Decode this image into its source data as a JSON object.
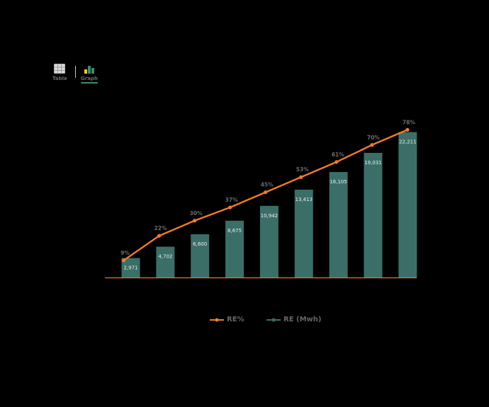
{
  "view_toggle": {
    "table_label": "Table",
    "graph_label": "Graph",
    "table_icon": "table-grid-icon",
    "graph_icon": "bar-graph-icon",
    "active": "graph"
  },
  "colors": {
    "bar": "#3b6e67",
    "line": "#f07a30",
    "axis": "#e07a2e",
    "label": "#6b6b6b",
    "active_tab": "#3e8b6e"
  },
  "chart_data": {
    "type": "bar",
    "categories": [
      "",
      "",
      "",
      "",
      "",
      "",
      "",
      "",
      ""
    ],
    "series": [
      {
        "name": "RE (Mwh)",
        "type": "bar",
        "values": [
          2971,
          4702,
          6600,
          8675,
          10942,
          13413,
          16105,
          19031,
          22211
        ],
        "labels": [
          "2,971",
          "4,702",
          "6,600",
          "8,675",
          "10,942",
          "13,413",
          "16,105",
          "19,031",
          "22,211"
        ]
      },
      {
        "name": "RE%",
        "type": "line",
        "values": [
          9,
          22,
          30,
          37,
          45,
          53,
          61,
          70,
          78
        ],
        "labels": [
          "9%",
          "22%",
          "30%",
          "37%",
          "45%",
          "53%",
          "61%",
          "70%",
          "78%"
        ]
      }
    ],
    "bar_ylim": [
      0,
      24000
    ],
    "line_ylim": [
      0,
      83
    ],
    "grid": false,
    "legend_position": "bottom"
  }
}
